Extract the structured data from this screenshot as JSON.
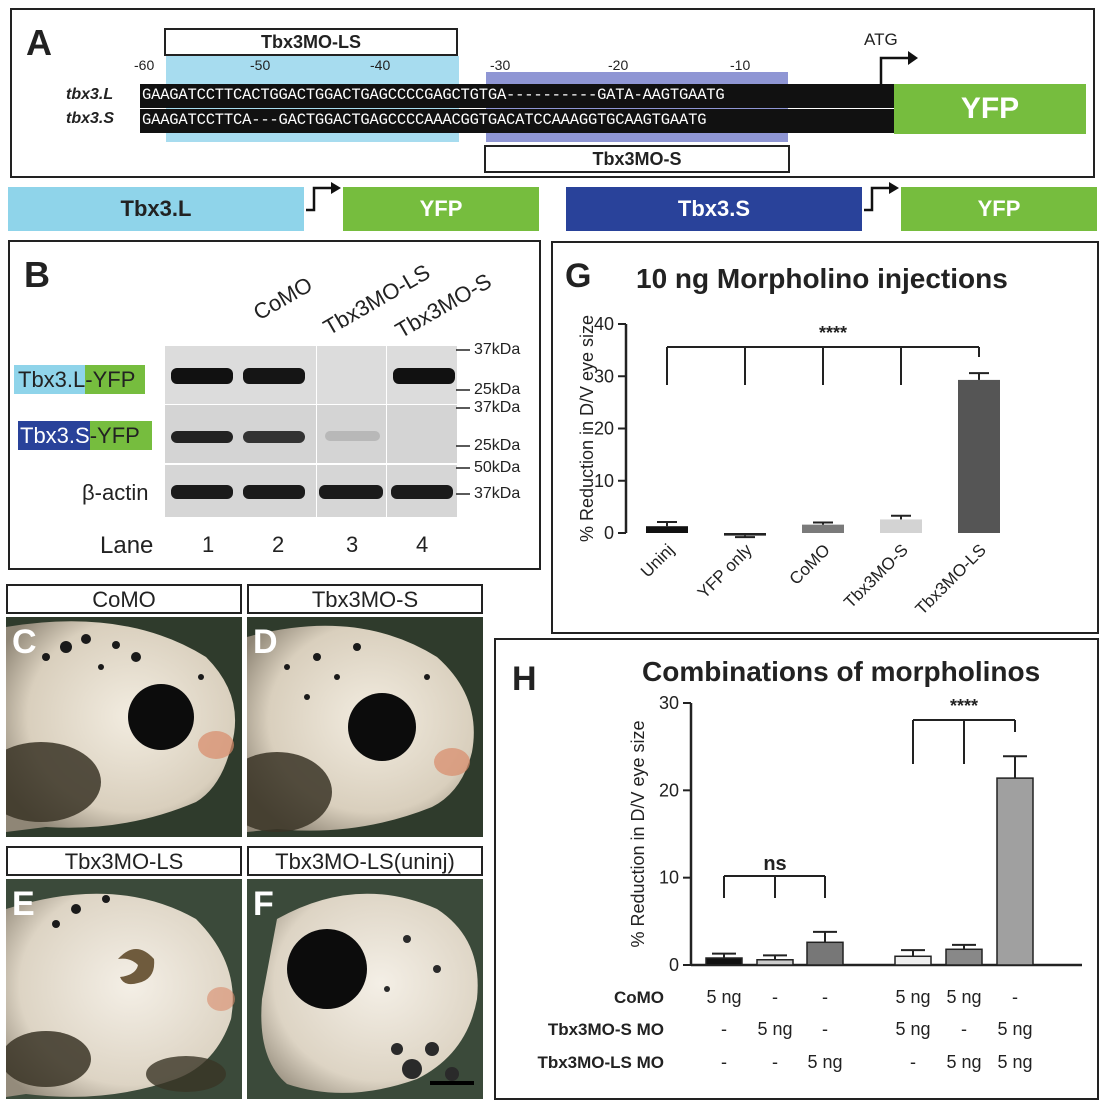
{
  "panel_a": {
    "letter": "A",
    "mo_ls_label": "Tbx3MO-LS",
    "mo_s_label": "Tbx3MO-S",
    "atg": "ATG",
    "positions": [
      "-60",
      "-50",
      "-40",
      "-30",
      "-20",
      "-10"
    ],
    "row_l_name": "tbx3.L",
    "row_s_name": "tbx3.S",
    "row_l_seq": "GAAGATCCTTCACTGGACTGGACTGAGCCCCGAGCTGTGA----------GATA-AAGTGAATG",
    "row_s_seq": "GAAGATCCTTCA---GACTGGACTGAGCCCCAAACGGTGACATCCAAAGGTGCAAGTGAATG",
    "yfp": "YFP"
  },
  "constructs": {
    "left_gene": "Tbx3.L",
    "left_yfp": "YFP",
    "right_gene": "Tbx3.S",
    "right_yfp": "YFP"
  },
  "panel_b": {
    "letter": "B",
    "lanes_header": [
      "CoMO",
      "Tbx3MO-LS",
      "Tbx3MO-S"
    ],
    "row1_gene": "Tbx3.L",
    "row1_tag": "-YFP",
    "row2_gene": "Tbx3.S",
    "row2_tag": "-YFP",
    "row3": "β-actin",
    "markers": [
      "37kDa",
      "25kDa",
      "37kDa",
      "25kDa",
      "50kDa",
      "37kDa"
    ],
    "lane_label": "Lane",
    "lane_numbers": [
      "1",
      "2",
      "3",
      "4"
    ]
  },
  "photos": {
    "c": {
      "letter": "C",
      "label": "CoMO"
    },
    "d": {
      "letter": "D",
      "label": "Tbx3MO-S"
    },
    "e": {
      "letter": "E",
      "label": "Tbx3MO-LS"
    },
    "f": {
      "letter": "F",
      "label": "Tbx3MO-LS(uninj)"
    }
  },
  "chart_data": [
    {
      "panel": "G",
      "type": "bar",
      "title": "10 ng Morpholino injections",
      "ylabel": "% Reduction in D/V eye size",
      "ylim": [
        0,
        40
      ],
      "yticks": [
        "0",
        "10",
        "20",
        "30",
        "40"
      ],
      "categories": [
        "Uninj",
        "YFP only",
        "CoMO",
        "Tbx3MO-S",
        "Tbx3MO-LS"
      ],
      "values": [
        1.3,
        -0.5,
        1.6,
        2.6,
        29.3
      ],
      "errors": [
        0.8,
        0.3,
        0.4,
        0.7,
        1.3
      ],
      "colors": [
        "#111111",
        "#222222",
        "#7a7a7a",
        "#d3d3d3",
        "#555555"
      ],
      "significance": "****"
    },
    {
      "panel": "H",
      "type": "bar",
      "title": "Combinations of morpholinos",
      "ylabel": "% Reduction in D/V eye size",
      "ylim": [
        0,
        30
      ],
      "yticks": [
        "0",
        "10",
        "20",
        "30"
      ],
      "values": [
        0.8,
        0.6,
        2.6,
        1.0,
        1.8,
        21.4
      ],
      "errors": [
        0.5,
        0.5,
        1.2,
        0.7,
        0.5,
        2.5
      ],
      "colors": [
        "#111111",
        "#cccccc",
        "#777777",
        "#eeeeee",
        "#888888",
        "#a0a0a0"
      ],
      "significance_left": "ns",
      "significance_right": "****",
      "conditions": [
        {
          "name": "CoMO",
          "values": [
            "5 ng",
            "-",
            "-",
            "5 ng",
            "5 ng",
            "-"
          ]
        },
        {
          "name": "Tbx3MO-S MO",
          "values": [
            "-",
            "5 ng",
            "-",
            "5 ng",
            "-",
            "5 ng"
          ]
        },
        {
          "name": "Tbx3MO-LS MO",
          "values": [
            "-",
            "-",
            "5 ng",
            "-",
            "5 ng",
            "5 ng"
          ]
        }
      ]
    }
  ]
}
